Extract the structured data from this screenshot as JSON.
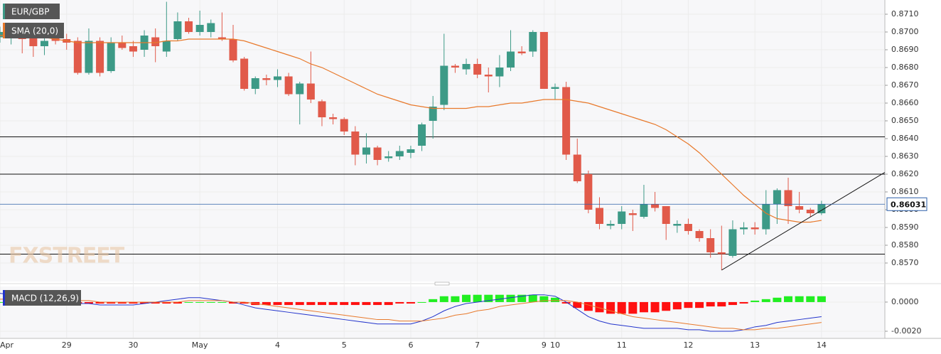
{
  "chart_data": [
    {
      "type": "candlestick",
      "title": "EUR/GBP",
      "watermark": "FXSTREET",
      "categories": [
        "Apr",
        null,
        null,
        null,
        null,
        null,
        "29",
        null,
        null,
        null,
        null,
        null,
        "30",
        null,
        null,
        null,
        null,
        null,
        "May",
        null,
        null,
        null,
        null,
        null,
        null,
        "4",
        null,
        null,
        null,
        null,
        null,
        "5",
        null,
        null,
        null,
        null,
        null,
        "6",
        null,
        null,
        null,
        null,
        null,
        "7",
        null,
        null,
        null,
        null,
        null,
        "9",
        "10",
        null,
        null,
        null,
        null,
        null,
        "11",
        null,
        null,
        null,
        null,
        null,
        "12",
        null,
        null,
        null,
        null,
        null,
        "13",
        null,
        null,
        null,
        null,
        null,
        "14"
      ],
      "open": [
        0.8697,
        0.8699,
        0.8701,
        0.8697,
        0.8692,
        0.8697,
        0.8696,
        0.8695,
        0.8677,
        0.8695,
        0.8678,
        0.8694,
        0.8692,
        0.869,
        0.8697,
        0.8689,
        0.8696,
        0.8706,
        0.87,
        0.87,
        0.8697,
        0.8696,
        0.8685,
        0.8668,
        0.8674,
        0.8673,
        0.8675,
        0.8665,
        0.8671,
        0.8661,
        0.8652,
        0.8651,
        0.8644,
        0.8631,
        0.8635,
        0.8629,
        0.863,
        0.8632,
        0.8636,
        0.865,
        0.8659,
        0.8681,
        0.8679,
        0.8682,
        0.8676,
        0.8675,
        0.868,
        0.8689,
        0.8689,
        0.87,
        0.8668,
        0.8669,
        0.8631,
        0.862,
        0.8601,
        0.8591,
        0.8592,
        0.8598,
        0.8596,
        0.8603,
        0.8602,
        0.8591,
        0.8592,
        0.8588,
        0.8584,
        0.8576,
        0.8574,
        0.8589,
        0.859,
        0.8589,
        0.8603,
        0.8611,
        0.8602,
        0.86,
        0.8598
      ],
      "high": [
        0.8703,
        0.8702,
        0.8704,
        0.8702,
        0.87,
        0.8701,
        0.8699,
        0.8697,
        0.8702,
        0.8697,
        0.8697,
        0.8698,
        0.8695,
        0.8701,
        0.8702,
        0.8717,
        0.8711,
        0.8708,
        0.8712,
        0.8707,
        0.8711,
        0.8704,
        0.8686,
        0.8675,
        0.8676,
        0.8679,
        0.8677,
        0.8672,
        0.8689,
        0.8662,
        0.8654,
        0.8652,
        0.8647,
        0.8643,
        0.8636,
        0.8633,
        0.8636,
        0.8636,
        0.8649,
        0.8664,
        0.8699,
        0.8682,
        0.8685,
        0.8685,
        0.868,
        0.8687,
        0.8701,
        0.8692,
        0.8701,
        0.87,
        0.8671,
        0.8672,
        0.864,
        0.8622,
        0.8607,
        0.8594,
        0.8602,
        0.86,
        0.8614,
        0.861,
        0.8602,
        0.8594,
        0.8595,
        0.8589,
        0.8589,
        0.8591,
        0.8594,
        0.8593,
        0.8593,
        0.8611,
        0.8612,
        0.8618,
        0.861,
        0.8601,
        0.8605
      ],
      "low": [
        0.8694,
        0.8693,
        0.8688,
        0.8686,
        0.8687,
        0.8693,
        0.869,
        0.8676,
        0.8676,
        0.8675,
        0.8677,
        0.869,
        0.8686,
        0.8686,
        0.8683,
        0.8686,
        0.8695,
        0.8699,
        0.8698,
        0.8697,
        0.8695,
        0.8683,
        0.8667,
        0.8665,
        0.867,
        0.8669,
        0.8664,
        0.8648,
        0.866,
        0.8647,
        0.8648,
        0.8642,
        0.8625,
        0.8626,
        0.8625,
        0.8627,
        0.8628,
        0.8629,
        0.8633,
        0.864,
        0.8656,
        0.8677,
        0.8676,
        0.8674,
        0.8666,
        0.8669,
        0.8678,
        0.8687,
        0.8686,
        0.8668,
        0.8662,
        0.8628,
        0.8615,
        0.8598,
        0.8589,
        0.8589,
        0.8589,
        0.8588,
        0.8595,
        0.8599,
        0.8583,
        0.8587,
        0.8586,
        0.8582,
        0.8573,
        0.8566,
        0.8573,
        0.8586,
        0.8586,
        0.8586,
        0.8592,
        0.8592,
        0.8598,
        0.8596,
        0.8597
      ],
      "close": [
        0.87,
        0.8701,
        0.8696,
        0.8692,
        0.8695,
        0.8695,
        0.8694,
        0.8677,
        0.8695,
        0.8677,
        0.8694,
        0.8691,
        0.8689,
        0.8698,
        0.8692,
        0.8695,
        0.8706,
        0.87,
        0.8704,
        0.8705,
        0.8696,
        0.8684,
        0.8668,
        0.8674,
        0.8673,
        0.8675,
        0.8665,
        0.8671,
        0.8662,
        0.8652,
        0.8651,
        0.8644,
        0.8631,
        0.8635,
        0.8628,
        0.863,
        0.8633,
        0.8634,
        0.8648,
        0.8658,
        0.8681,
        0.868,
        0.8682,
        0.8676,
        0.8675,
        0.868,
        0.8689,
        0.8688,
        0.87,
        0.8668,
        0.8669,
        0.8631,
        0.8616,
        0.86,
        0.8592,
        0.8592,
        0.8599,
        0.8597,
        0.8603,
        0.8601,
        0.8592,
        0.8592,
        0.8588,
        0.8584,
        0.8576,
        0.8575,
        0.8589,
        0.859,
        0.8589,
        0.8603,
        0.8611,
        0.8602,
        0.86,
        0.8598,
        0.8603
      ],
      "up_color": "#3d9a87",
      "down_color": "#e15a4a",
      "series": [
        {
          "name": "SMA (20,0)",
          "color": "#e8792b",
          "values": [
            0.8698,
            0.8698,
            0.8698,
            0.8697,
            0.8697,
            0.8696,
            0.8695,
            0.8694,
            0.8694,
            0.8694,
            0.8694,
            0.8694,
            0.8694,
            0.8694,
            0.8694,
            0.8695,
            0.8695,
            0.8696,
            0.8696,
            0.8696,
            0.8696,
            0.8696,
            0.8695,
            0.8693,
            0.8691,
            0.8689,
            0.8687,
            0.8685,
            0.8682,
            0.868,
            0.8677,
            0.8674,
            0.8671,
            0.8668,
            0.8665,
            0.8663,
            0.8661,
            0.8659,
            0.8658,
            0.8657,
            0.8657,
            0.8657,
            0.8657,
            0.8658,
            0.8658,
            0.8659,
            0.866,
            0.866,
            0.8661,
            0.8662,
            0.8662,
            0.8662,
            0.8661,
            0.866,
            0.8658,
            0.8656,
            0.8654,
            0.8652,
            0.865,
            0.8648,
            0.8645,
            0.8641,
            0.8637,
            0.8632,
            0.8626,
            0.862,
            0.8614,
            0.8608,
            0.8603,
            0.8598,
            0.8595,
            0.8594,
            0.8593,
            0.8593,
            0.8594
          ]
        }
      ],
      "last_price": {
        "value": 0.86031,
        "label": "0.86031"
      },
      "hlines": [
        0.8641,
        0.862,
        0.8575
      ],
      "trendline": {
        "x": [
          65,
          79.7
        ],
        "y": [
          0.8566,
          0.8621
        ]
      },
      "ylim": [
        0.85596,
        0.8718
      ],
      "yticks": [
        {
          "value": 0.857,
          "label": "0.8570"
        },
        {
          "value": 0.858,
          "label": "0.8580"
        },
        {
          "value": 0.859,
          "label": "0.8590"
        },
        {
          "value": 0.86,
          "label": "0.8600"
        },
        {
          "value": 0.861,
          "label": "0.8610"
        },
        {
          "value": 0.862,
          "label": "0.8620"
        },
        {
          "value": 0.863,
          "label": "0.8630"
        },
        {
          "value": 0.864,
          "label": "0.8640"
        },
        {
          "value": 0.865,
          "label": "0.8650"
        },
        {
          "value": 0.866,
          "label": "0.8660"
        },
        {
          "value": 0.867,
          "label": "0.8670"
        },
        {
          "value": 0.868,
          "label": "0.8680"
        },
        {
          "value": 0.869,
          "label": "0.8690"
        },
        {
          "value": 0.87,
          "label": "0.8700"
        },
        {
          "value": 0.871,
          "label": "0.8710"
        }
      ],
      "grid": true
    },
    {
      "type": "macd",
      "title": "MACD (12,26,9)",
      "histogram": {
        "up_color": "#22ee22",
        "down_color": "#ff1111",
        "values": [
          0,
          0,
          0,
          0,
          -0.0001,
          -0.0001,
          -0.0001,
          -0.0001,
          -0.0001,
          -0.0001,
          -0.0001,
          -0.0001,
          -0.0001,
          -0.0001,
          -0.0001,
          -0.0001,
          -0.0001,
          0,
          0,
          0,
          0,
          -0.0001,
          -0.0001,
          -0.0002,
          -0.0002,
          -0.0002,
          -0.0002,
          -0.0002,
          -0.0002,
          -0.0002,
          -0.0002,
          -0.0002,
          -0.0002,
          -0.0002,
          -0.0002,
          -0.0002,
          -0.0001,
          -0.0001,
          0,
          0.0002,
          0.0004,
          0.0004,
          0.0005,
          0.0005,
          0.0005,
          0.0005,
          0.0005,
          0.0005,
          0.0005,
          0.0004,
          0.0003,
          -0.0001,
          -0.0004,
          -0.0006,
          -0.0007,
          -0.0008,
          -0.0008,
          -0.0008,
          -0.0007,
          -0.0007,
          -0.0006,
          -0.0005,
          -0.0004,
          -0.0004,
          -0.0003,
          -0.0003,
          -0.0002,
          -0.0001,
          0.0001,
          0.0002,
          0.0003,
          0.0004,
          0.0004,
          0.0004,
          0.0004
        ]
      },
      "series": [
        {
          "color": "#2233cc",
          "values": [
            0.0006,
            0.0005,
            0.0004,
            0.0003,
            0.0002,
            0.0001,
            0,
            -0.0001,
            -0.0001,
            -0.0002,
            -0.0002,
            -0.0002,
            -0.0002,
            -0.0001,
            0,
            0.0001,
            0.0002,
            0.0003,
            0.0003,
            0.0002,
            0.0001,
            0,
            -0.0002,
            -0.0004,
            -0.0005,
            -0.0006,
            -0.0007,
            -0.0008,
            -0.0009,
            -0.001,
            -0.0011,
            -0.0012,
            -0.0013,
            -0.0014,
            -0.0015,
            -0.0015,
            -0.0015,
            -0.0015,
            -0.0013,
            -0.001,
            -0.0006,
            -0.0003,
            -0.0001,
            0,
            0.0001,
            0.0002,
            0.0003,
            0.0004,
            0.0005,
            0.0005,
            0.0004,
            0,
            -0.0005,
            -0.001,
            -0.0013,
            -0.0015,
            -0.0016,
            -0.0017,
            -0.0018,
            -0.0018,
            -0.0018,
            -0.0018,
            -0.0019,
            -0.0019,
            -0.002,
            -0.002,
            -0.002,
            -0.0019,
            -0.0017,
            -0.0016,
            -0.0014,
            -0.0013,
            -0.0012,
            -0.0011,
            -0.001
          ]
        },
        {
          "color": "#e8792b",
          "values": [
            0.0002,
            0.0002,
            0.0002,
            0.0002,
            0.0002,
            0.0001,
            0.0001,
            0.0001,
            0.0001,
            0,
            0,
            0,
            0,
            0,
            0,
            0,
            0,
            0.0001,
            0.0001,
            0.0001,
            0.0001,
            0,
            0,
            -0.0001,
            -0.0002,
            -0.0003,
            -0.0004,
            -0.0005,
            -0.0006,
            -0.0007,
            -0.0008,
            -0.0009,
            -0.001,
            -0.0011,
            -0.0012,
            -0.0012,
            -0.0013,
            -0.0013,
            -0.0013,
            -0.0012,
            -0.0011,
            -0.0009,
            -0.0008,
            -0.0006,
            -0.0005,
            -0.0003,
            -0.0002,
            -0.0001,
            0,
            0.0001,
            0.0001,
            0.0001,
            0,
            -0.0002,
            -0.0004,
            -0.0006,
            -0.0008,
            -0.001,
            -0.0011,
            -0.0012,
            -0.0013,
            -0.0014,
            -0.0015,
            -0.0016,
            -0.0017,
            -0.0018,
            -0.0018,
            -0.0019,
            -0.0019,
            -0.0018,
            -0.0018,
            -0.0017,
            -0.0016,
            -0.0015,
            -0.0014
          ]
        }
      ],
      "ylim": [
        -0.00244,
        0.00107
      ],
      "yticks": [
        {
          "value": 0,
          "label": "0.0000"
        },
        {
          "value": -0.002,
          "label": "-0.0020"
        }
      ],
      "grid": true
    }
  ]
}
